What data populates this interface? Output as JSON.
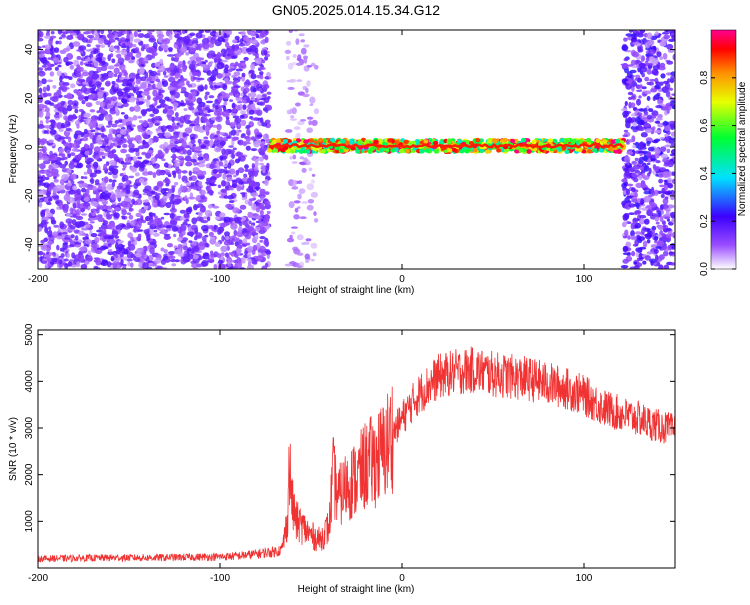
{
  "title": "GN05.2025.014.15.34.G12",
  "colors": {
    "snr_line": "#f03232",
    "frame": "#000000",
    "background": "#ffffff"
  },
  "chart_data": [
    {
      "type": "heatmap",
      "xlabel": "Height of straight line (km)",
      "ylabel": "Frequency (Hz)",
      "xlim": [
        -200,
        150
      ],
      "ylim": [
        -50,
        48
      ],
      "xticks": [
        -200,
        -100,
        0,
        100
      ],
      "yticks": [
        -40,
        -20,
        0,
        20,
        40
      ],
      "grid": false,
      "colorbar": {
        "label": "Normalized spectral amplitude",
        "range": [
          0,
          1
        ],
        "ticks": [
          0.0,
          0.2,
          0.4,
          0.6,
          0.8
        ],
        "colormap": "rainbow (white, violet, blue, cyan, green, yellow, orange, red, magenta)"
      },
      "regions": [
        {
          "x_from": -200,
          "x_to": -73,
          "freq_from": -50,
          "freq_to": 48,
          "amplitude": [
            0.05,
            0.2
          ],
          "pattern": "noise"
        },
        {
          "x_from": -63,
          "x_to": -47,
          "freq_from": -50,
          "freq_to": 48,
          "amplitude": [
            0.02,
            0.1
          ],
          "pattern": "sparse noise"
        },
        {
          "x_from": -73,
          "x_to": 122,
          "freq_from": -3,
          "freq_to": 4,
          "amplitude": [
            0.4,
            1.0
          ],
          "pattern": "carrier line near 0 Hz"
        },
        {
          "x_from": 122,
          "x_to": 150,
          "freq_from": -50,
          "freq_to": 48,
          "amplitude": [
            0.05,
            0.25
          ],
          "pattern": "noise"
        }
      ]
    },
    {
      "type": "line",
      "xlabel": "Height of straight line (km)",
      "ylabel": "SNR (10 * v/v)",
      "xlim": [
        -200,
        150
      ],
      "ylim": [
        0,
        5100
      ],
      "xticks": [
        -200,
        -100,
        0,
        100
      ],
      "yticks": [
        1000,
        2000,
        3000,
        4000,
        5000
      ],
      "grid": false,
      "series": [
        {
          "x": [
            -200,
            -180,
            -160,
            -140,
            -120,
            -100,
            -90,
            -80,
            -70,
            -66,
            -63,
            -62,
            -60,
            -58,
            -55,
            -50,
            -45,
            -40,
            -38,
            -35,
            -30,
            -25,
            -20,
            -15,
            -10,
            -5,
            0,
            5,
            10,
            20,
            30,
            40,
            50,
            60,
            70,
            80,
            90,
            100,
            110,
            120,
            130,
            140,
            150
          ],
          "values": [
            200,
            210,
            220,
            220,
            230,
            240,
            260,
            300,
            350,
            400,
            1000,
            2200,
            1300,
            1000,
            900,
            700,
            600,
            900,
            2000,
            1500,
            1800,
            1900,
            2200,
            2300,
            2500,
            2900,
            3200,
            3500,
            3750,
            4100,
            4200,
            4250,
            4150,
            4100,
            4050,
            3950,
            3850,
            3700,
            3450,
            3300,
            3200,
            3050,
            2950
          ]
        }
      ]
    }
  ]
}
